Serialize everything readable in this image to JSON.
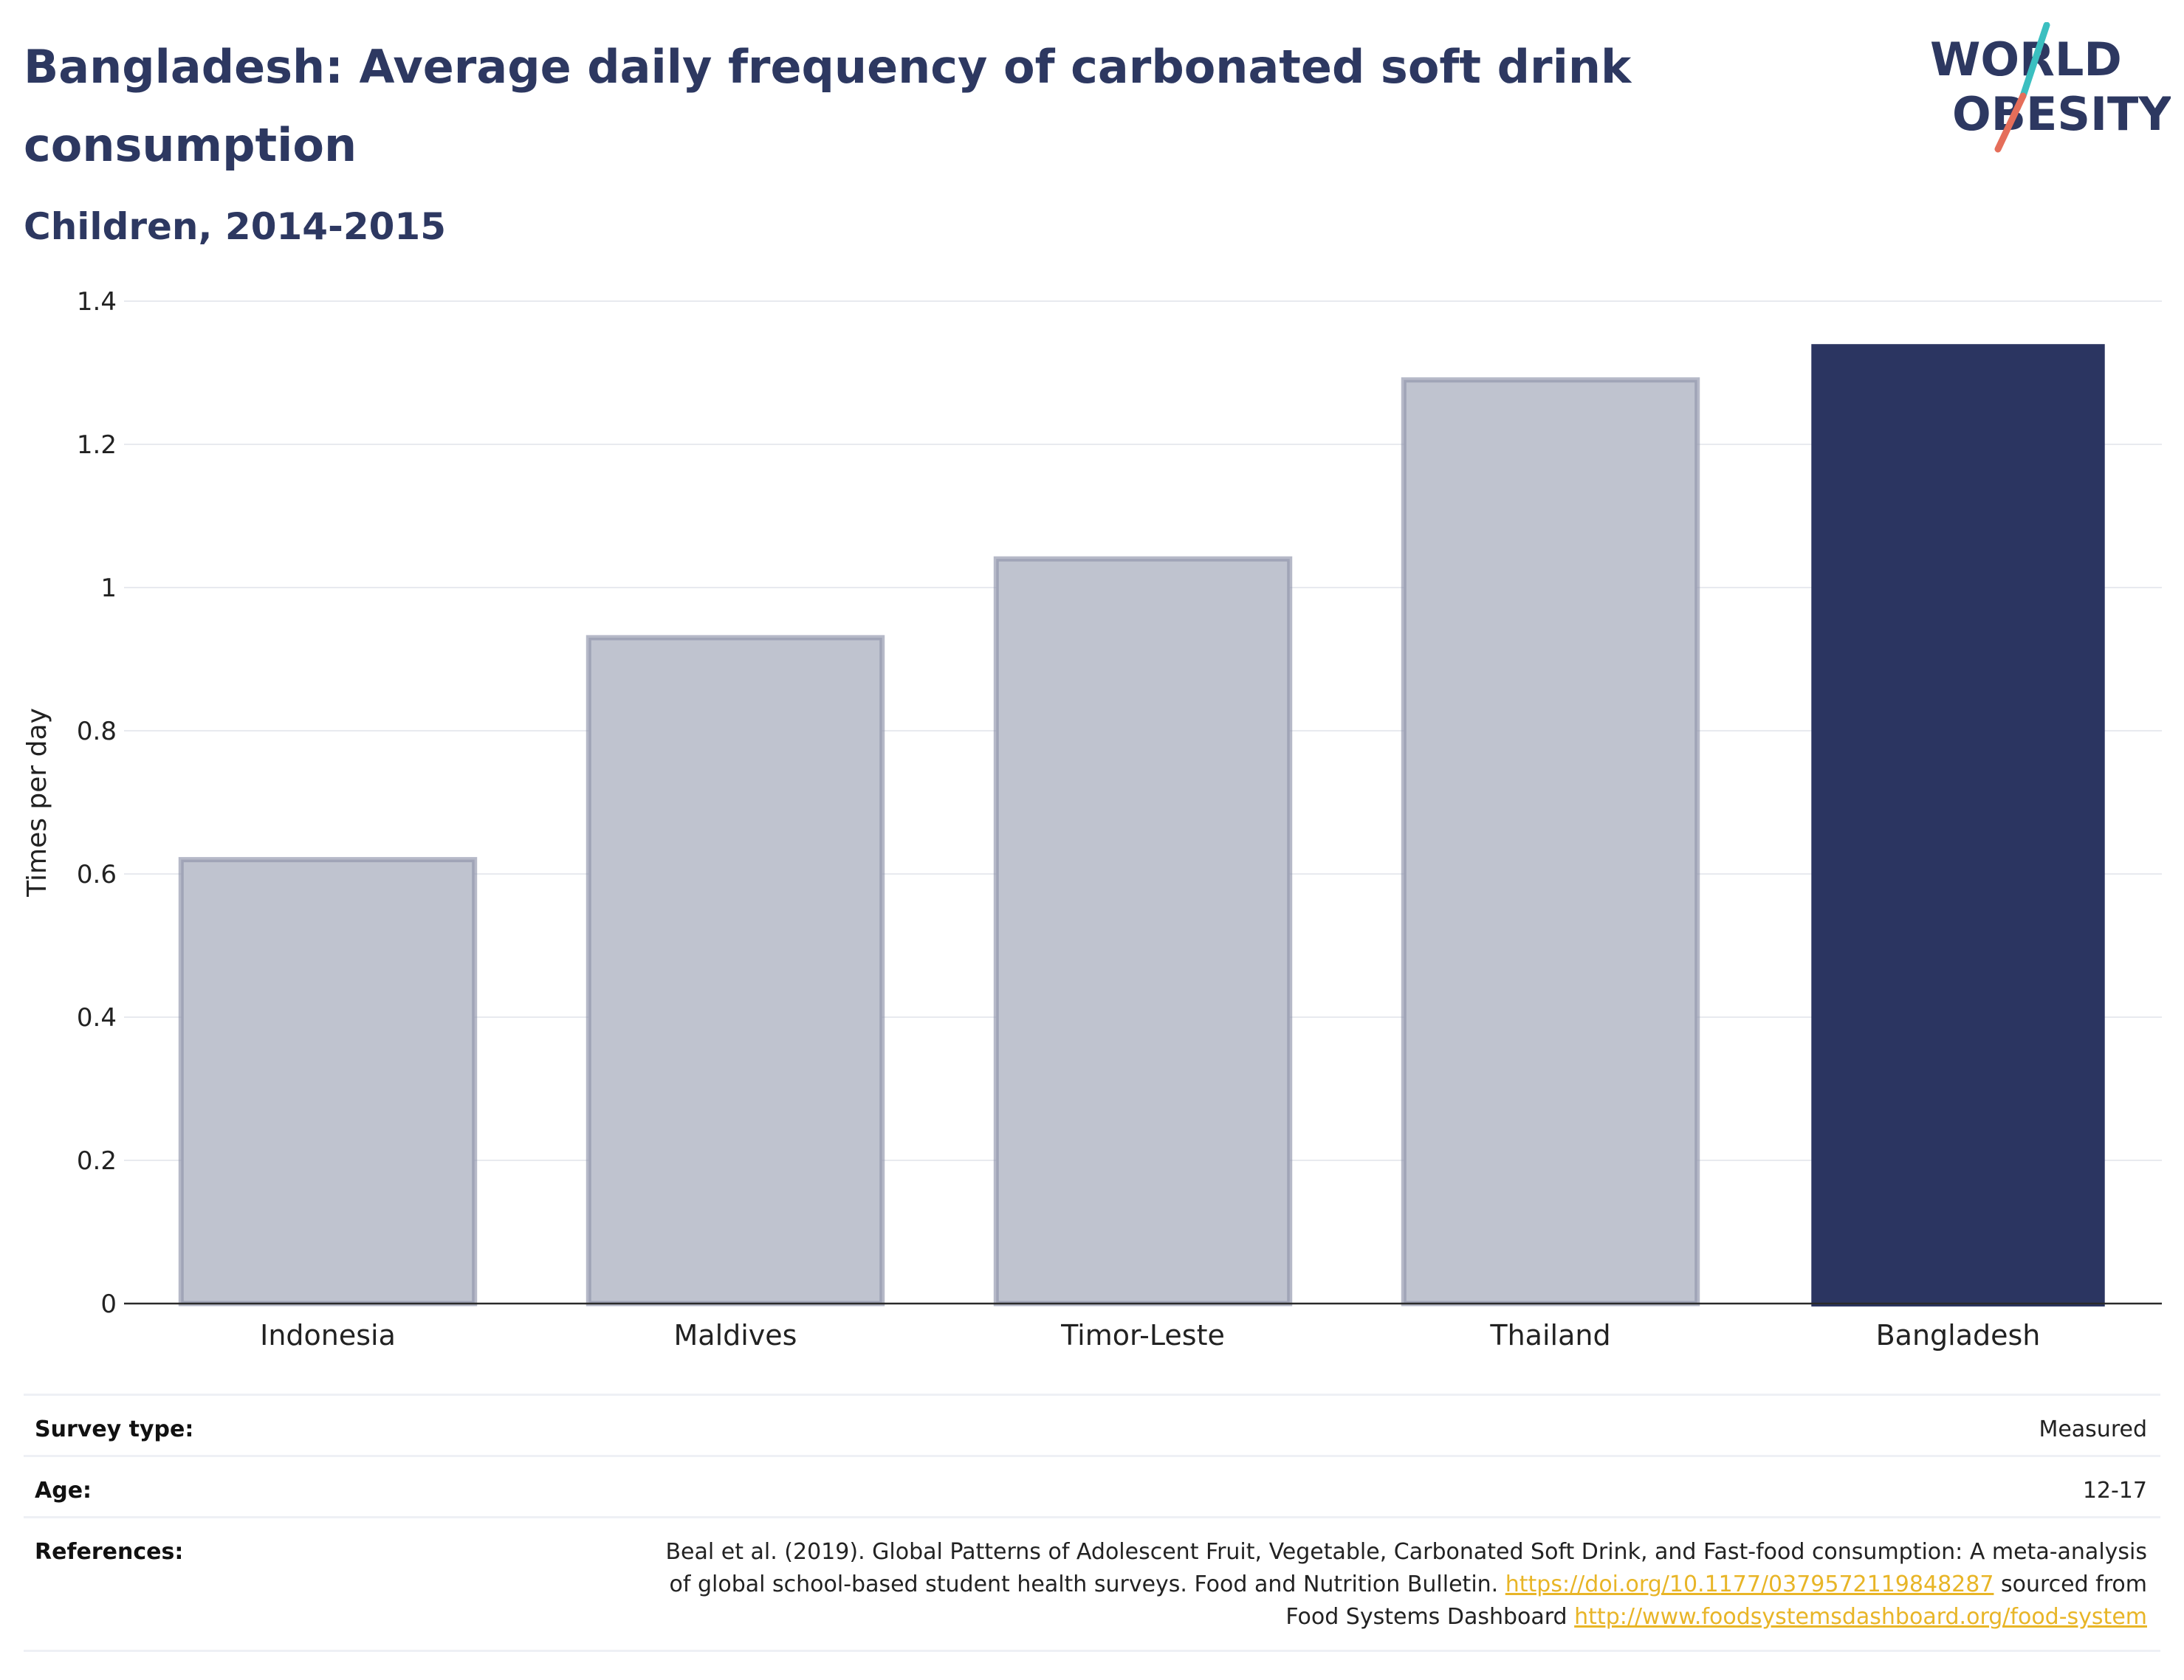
{
  "title": "Bangladesh: Average daily frequency of carbonated soft drink consumption",
  "subtitle": "Children, 2014-2015",
  "logo": {
    "line1": "WORLD",
    "line2": "OBESITY",
    "accent_teal": "#3bbfc0",
    "accent_coral": "#e56e5a"
  },
  "colors": {
    "highlight_bar": "#2b3561",
    "other_bar_fill": "#bfc3cf",
    "other_bar_stroke": "#8f94aa",
    "grid": "#e8eaef",
    "text_dark": "#2d3861",
    "link": "#e8b527"
  },
  "chart_data": {
    "type": "bar",
    "categories": [
      "Indonesia",
      "Maldives",
      "Timor-Leste",
      "Thailand",
      "Bangladesh"
    ],
    "values": [
      0.62,
      0.93,
      1.04,
      1.29,
      1.34
    ],
    "highlight": "Bangladesh",
    "ylabel": "Times per day",
    "ylim": [
      0,
      1.4
    ],
    "yticks": [
      0,
      0.2,
      0.4,
      0.6,
      0.8,
      1,
      1.2,
      1.4
    ],
    "ytick_labels": [
      "0",
      "0.2",
      "0.4",
      "0.6",
      "0.8",
      "1",
      "1.2",
      "1.4"
    ],
    "grid": true
  },
  "info": {
    "survey_type_label": "Survey type:",
    "survey_type_value": "Measured",
    "age_label": "Age:",
    "age_value": "12-17",
    "references_label": "References:",
    "ref_line1": "Beal et al. (2019). Global Patterns of Adolescent Fruit, Vegetable, Carbonated Soft Drink, and Fast-food consumption: A meta-analysis",
    "ref_line2_text": "of global school-based student health surveys. Food and Nutrition Bulletin.",
    "ref_link1": "https://doi.org/10.1177/0379572119848287",
    "ref_line2_suffix": "sourced from",
    "ref_line3_text": "Food Systems Dashboard",
    "ref_link2": "http://www.foodsystemsdashboard.org/food-system"
  }
}
